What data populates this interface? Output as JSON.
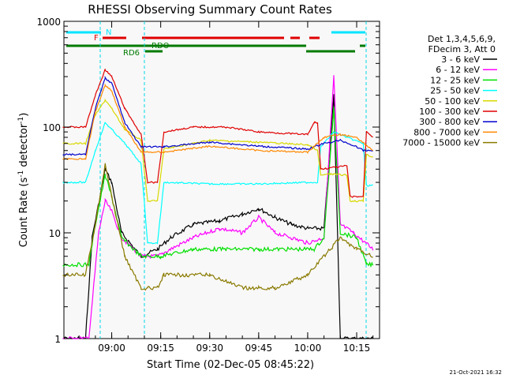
{
  "chart_data": {
    "type": "line",
    "title": "RHESSI Observing Summary Count Rates",
    "xlabel": "Start Time (02-Dec-05 08:45:22)",
    "ylabel_main": "Count Rate (s",
    "ylabel_sup": "-1",
    "ylabel_tail": " detector",
    "ylabel_close": ")",
    "ylog": true,
    "xlim": [
      "08:45:22",
      "10:22:00"
    ],
    "ylim": [
      1,
      1000
    ],
    "x_ticks": [
      "09:00",
      "09:15",
      "09:30",
      "09:45",
      "10:00",
      "10:15"
    ],
    "y_ticks": [
      "1",
      "10",
      "100",
      "1000"
    ],
    "legend_header": [
      "Det 1,3,4,5,6,9,",
      "FDecim 3, Att 0"
    ],
    "legend_position": "right",
    "timestamp": "21-Oct-2021 16:32",
    "flags": [
      {
        "label": "N",
        "color": "#00e5ff"
      },
      {
        "label": "F",
        "color": "#e00000"
      },
      {
        "label": "RDO",
        "color": "#007a00"
      },
      {
        "label": "RD6",
        "color": "#007a00"
      }
    ],
    "series": [
      {
        "name": "3 - 6 keV",
        "color": "#000000",
        "points": [
          [
            "08:45",
            1
          ],
          [
            "08:52",
            1
          ],
          [
            "08:54",
            9
          ],
          [
            "08:58",
            40
          ],
          [
            "09:00",
            30
          ],
          [
            "09:03",
            10
          ],
          [
            "09:09",
            6
          ],
          [
            "09:14",
            7
          ],
          [
            "09:18",
            9
          ],
          [
            "09:25",
            12
          ],
          [
            "09:33",
            13
          ],
          [
            "09:40",
            15
          ],
          [
            "09:45",
            17
          ],
          [
            "09:50",
            14
          ],
          [
            "09:55",
            12
          ],
          [
            "10:00",
            11
          ],
          [
            "10:05",
            11
          ],
          [
            "10:08",
            200
          ],
          [
            "10:10",
            1
          ],
          [
            "10:14",
            1
          ],
          [
            "10:20",
            1
          ]
        ]
      },
      {
        "name": "6 - 12 keV",
        "color": "#ff00ff",
        "points": [
          [
            "08:45",
            1
          ],
          [
            "08:53",
            1
          ],
          [
            "08:56",
            10
          ],
          [
            "08:58",
            20
          ],
          [
            "09:00",
            16
          ],
          [
            "09:03",
            9
          ],
          [
            "09:09",
            6
          ],
          [
            "09:14",
            6
          ],
          [
            "09:18",
            7
          ],
          [
            "09:25",
            9
          ],
          [
            "09:33",
            11
          ],
          [
            "09:40",
            10
          ],
          [
            "09:45",
            14
          ],
          [
            "09:50",
            10
          ],
          [
            "09:55",
            9
          ],
          [
            "10:00",
            8
          ],
          [
            "10:05",
            9
          ],
          [
            "10:08",
            300
          ],
          [
            "10:10",
            12
          ],
          [
            "10:14",
            10
          ],
          [
            "10:20",
            7
          ]
        ]
      },
      {
        "name": "12 - 25 keV",
        "color": "#00e000",
        "points": [
          [
            "08:45",
            5
          ],
          [
            "08:53",
            5
          ],
          [
            "08:55",
            12
          ],
          [
            "08:58",
            35
          ],
          [
            "09:00",
            22
          ],
          [
            "09:03",
            9
          ],
          [
            "09:09",
            6
          ],
          [
            "09:15",
            6
          ],
          [
            "09:25",
            7
          ],
          [
            "09:35",
            7
          ],
          [
            "09:45",
            7
          ],
          [
            "09:55",
            7
          ],
          [
            "10:02",
            7
          ],
          [
            "10:05",
            9
          ],
          [
            "10:08",
            150
          ],
          [
            "10:10",
            10
          ],
          [
            "10:15",
            9
          ],
          [
            "10:18",
            5
          ],
          [
            "10:20",
            5
          ]
        ]
      },
      {
        "name": "25 - 50 keV",
        "color": "#00ffff",
        "points": [
          [
            "08:45",
            30
          ],
          [
            "08:52",
            30
          ],
          [
            "08:55",
            60
          ],
          [
            "08:58",
            110
          ],
          [
            "09:00",
            95
          ],
          [
            "09:04",
            70
          ],
          [
            "09:09",
            45
          ],
          [
            "09:11",
            8
          ],
          [
            "09:14",
            8
          ],
          [
            "09:16",
            30
          ],
          [
            "09:30",
            29
          ],
          [
            "09:45",
            29
          ],
          [
            "10:00",
            30
          ],
          [
            "10:03",
            30
          ],
          [
            "10:04",
            65
          ],
          [
            "10:08",
            90
          ],
          [
            "10:12",
            80
          ],
          [
            "10:17",
            70
          ],
          [
            "10:18",
            28
          ],
          [
            "10:20",
            28
          ]
        ]
      },
      {
        "name": "50 - 100 keV",
        "color": "#d8d800",
        "points": [
          [
            "08:45",
            70
          ],
          [
            "08:52",
            70
          ],
          [
            "08:55",
            130
          ],
          [
            "08:58",
            180
          ],
          [
            "09:00",
            150
          ],
          [
            "09:04",
            95
          ],
          [
            "09:09",
            75
          ],
          [
            "09:11",
            20
          ],
          [
            "09:14",
            20
          ],
          [
            "09:16",
            62
          ],
          [
            "09:30",
            75
          ],
          [
            "09:45",
            72
          ],
          [
            "10:00",
            68
          ],
          [
            "10:03",
            60
          ],
          [
            "10:04",
            35
          ],
          [
            "10:07",
            36
          ],
          [
            "10:12",
            35
          ],
          [
            "10:13",
            20
          ],
          [
            "10:17",
            20
          ],
          [
            "10:18",
            55
          ],
          [
            "10:20",
            52
          ]
        ]
      },
      {
        "name": "100 - 300 keV",
        "color": "#e00000",
        "points": [
          [
            "08:45",
            100
          ],
          [
            "08:52",
            100
          ],
          [
            "08:55",
            200
          ],
          [
            "08:58",
            350
          ],
          [
            "09:00",
            300
          ],
          [
            "09:04",
            150
          ],
          [
            "09:09",
            85
          ],
          [
            "09:11",
            30
          ],
          [
            "09:14",
            30
          ],
          [
            "09:16",
            90
          ],
          [
            "09:25",
            100
          ],
          [
            "09:35",
            100
          ],
          [
            "09:45",
            90
          ],
          [
            "10:00",
            85
          ],
          [
            "10:02",
            110
          ],
          [
            "10:03",
            110
          ],
          [
            "10:04",
            40
          ],
          [
            "10:12",
            43
          ],
          [
            "10:13",
            22
          ],
          [
            "10:17",
            22
          ],
          [
            "10:18",
            92
          ],
          [
            "10:20",
            80
          ]
        ]
      },
      {
        "name": "300 - 800 keV",
        "color": "#0000cc",
        "points": [
          [
            "08:45",
            55
          ],
          [
            "08:52",
            55
          ],
          [
            "08:55",
            150
          ],
          [
            "08:58",
            290
          ],
          [
            "09:00",
            260
          ],
          [
            "09:04",
            110
          ],
          [
            "09:09",
            65
          ],
          [
            "09:11",
            65
          ],
          [
            "09:16",
            65
          ],
          [
            "09:30",
            72
          ],
          [
            "09:45",
            66
          ],
          [
            "10:00",
            62
          ],
          [
            "10:05",
            70
          ],
          [
            "10:10",
            75
          ],
          [
            "10:15",
            65
          ],
          [
            "10:17",
            60
          ],
          [
            "10:20",
            60
          ]
        ]
      },
      {
        "name": "800 - 7000 keV",
        "color": "#ff8800",
        "points": [
          [
            "08:45",
            50
          ],
          [
            "08:52",
            50
          ],
          [
            "08:55",
            140
          ],
          [
            "08:58",
            250
          ],
          [
            "09:00",
            220
          ],
          [
            "09:04",
            100
          ],
          [
            "09:09",
            58
          ],
          [
            "09:16",
            58
          ],
          [
            "09:30",
            66
          ],
          [
            "09:45",
            60
          ],
          [
            "10:00",
            58
          ],
          [
            "10:05",
            80
          ],
          [
            "10:10",
            85
          ],
          [
            "10:15",
            80
          ],
          [
            "10:20",
            60
          ]
        ]
      },
      {
        "name": "7000 - 15000 keV",
        "color": "#8a7a00",
        "points": [
          [
            "08:45",
            4
          ],
          [
            "08:52",
            4
          ],
          [
            "08:55",
            12
          ],
          [
            "08:58",
            45
          ],
          [
            "09:00",
            22
          ],
          [
            "09:04",
            6
          ],
          [
            "09:09",
            3
          ],
          [
            "09:11",
            3
          ],
          [
            "09:14",
            3
          ],
          [
            "09:16",
            4
          ],
          [
            "09:30",
            4
          ],
          [
            "09:40",
            3
          ],
          [
            "09:45",
            3
          ],
          [
            "09:50",
            3
          ],
          [
            "10:00",
            4
          ],
          [
            "10:05",
            6
          ],
          [
            "10:10",
            9
          ],
          [
            "10:15",
            7
          ],
          [
            "10:20",
            6
          ]
        ]
      }
    ]
  }
}
